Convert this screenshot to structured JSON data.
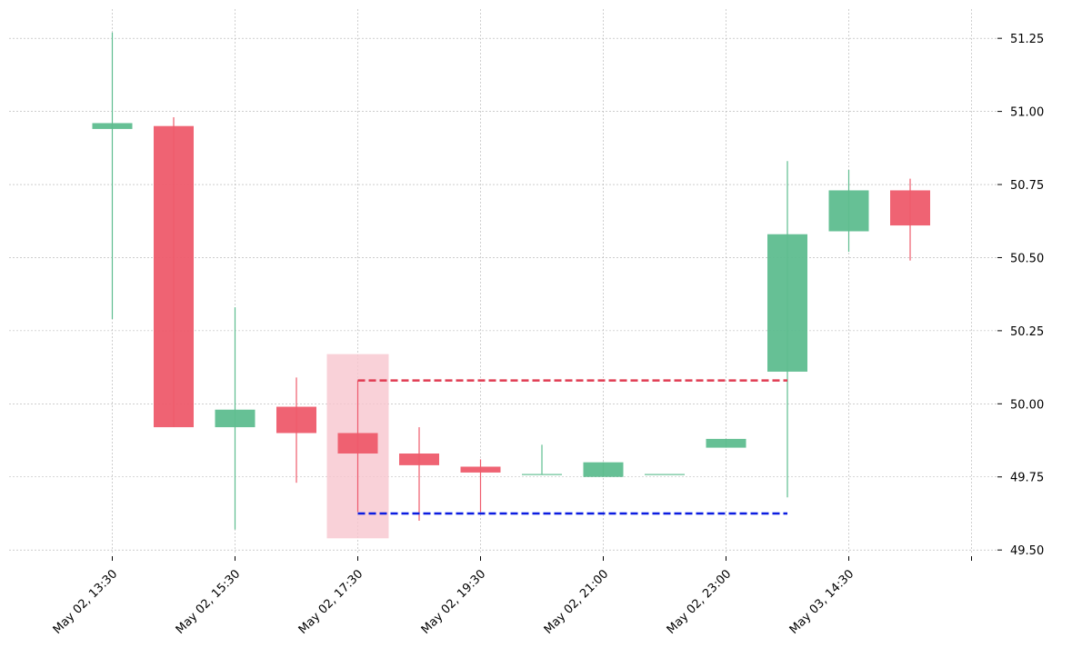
{
  "chart_data": {
    "type": "candlestick",
    "x": [
      "May 02, 13:30",
      "",
      "May 02, 15:30",
      "",
      "May 02, 17:30",
      "",
      "May 02, 19:30",
      "",
      "May 02, 21:00",
      "",
      "May 02, 23:00",
      "",
      "May 03, 14:30",
      ""
    ],
    "xticks": [
      "May 02, 13:30",
      "May 02, 15:30",
      "May 02, 17:30",
      "May 02, 19:30",
      "May 02, 21:00",
      "May 02, 23:00",
      "May 03, 14:30",
      ""
    ],
    "candles": [
      {
        "open": 50.94,
        "high": 51.27,
        "low": 50.29,
        "close": 50.96
      },
      {
        "open": 50.95,
        "high": 50.98,
        "low": 49.92,
        "close": 49.92
      },
      {
        "open": 49.92,
        "high": 50.33,
        "low": 49.57,
        "close": 49.98
      },
      {
        "open": 49.99,
        "high": 50.09,
        "low": 49.73,
        "close": 49.9
      },
      {
        "open": 49.9,
        "high": 50.08,
        "low": 49.63,
        "close": 49.83
      },
      {
        "open": 49.83,
        "high": 49.92,
        "low": 49.6,
        "close": 49.79
      },
      {
        "open": 49.785,
        "high": 49.81,
        "low": 49.63,
        "close": 49.765
      },
      {
        "open": 49.76,
        "high": 49.86,
        "low": 49.76,
        "close": 49.76
      },
      {
        "open": 49.75,
        "high": 49.8,
        "low": 49.75,
        "close": 49.8
      },
      {
        "open": 49.76,
        "high": 49.76,
        "low": 49.76,
        "close": 49.76
      },
      {
        "open": 49.85,
        "high": 49.88,
        "low": 49.85,
        "close": 49.88
      },
      {
        "open": 50.11,
        "high": 50.83,
        "low": 49.68,
        "close": 50.58
      },
      {
        "open": 50.59,
        "high": 50.8,
        "low": 50.52,
        "close": 50.73
      },
      {
        "open": 50.73,
        "high": 50.77,
        "low": 50.49,
        "close": 50.61
      }
    ],
    "yticks": [
      "49.50",
      "49.75",
      "50.00",
      "50.25",
      "50.50",
      "50.75",
      "51.00",
      "51.25"
    ],
    "ylim": [
      49.485,
      51.35
    ],
    "resistance_level": 50.08,
    "support_level": 49.625,
    "levels_span": [
      4,
      11
    ],
    "highlight_index": 4,
    "highlight_range": [
      49.54,
      50.17
    ],
    "grid": true,
    "colors": {
      "up": "#5ebd8f",
      "down": "#ee5b6c",
      "resistance": "#e03c52",
      "support": "#0b1ce0",
      "highlight": "#f7c6ce",
      "grid": "#b0b0b0"
    }
  }
}
